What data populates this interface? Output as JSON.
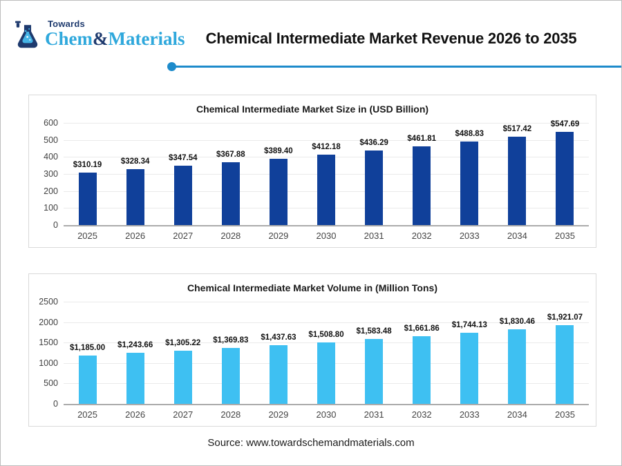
{
  "header": {
    "logo": {
      "towards": "Towards",
      "chem": "Chem",
      "ampersand": "&",
      "materials": "Materials"
    },
    "title": "Chemical Intermediate Market Revenue 2026 to 2035"
  },
  "colors": {
    "brand_dark_navy": "#1e3a6e",
    "brand_light_blue": "#2fa8dc",
    "accent_line": "#1d8bcb",
    "bar_dark_blue": "#10409a",
    "bar_sky_blue": "#3ec0f2"
  },
  "footer": {
    "source": "Source: www.towardschemandmaterials.com"
  },
  "chart_data": [
    {
      "type": "bar",
      "title": "Chemical Intermediate Market Size in (USD Billion)",
      "categories": [
        "2025",
        "2026",
        "2027",
        "2028",
        "2029",
        "2030",
        "2031",
        "2032",
        "2033",
        "2034",
        "2035"
      ],
      "values": [
        310.19,
        328.34,
        347.54,
        367.88,
        389.4,
        412.18,
        436.29,
        461.81,
        488.83,
        517.42,
        547.69
      ],
      "labels": [
        "$310.19",
        "$328.34",
        "$347.54",
        "$367.88",
        "$389.40",
        "$412.18",
        "$436.29",
        "$461.81",
        "$488.83",
        "$517.42",
        "$547.69"
      ],
      "xlabel": "",
      "ylabel": "",
      "ylim": [
        0,
        600
      ],
      "yticks": [
        0,
        100,
        200,
        300,
        400,
        500,
        600
      ],
      "grid": true,
      "legend": "none",
      "bar_color": "#10409a"
    },
    {
      "type": "bar",
      "title": "Chemical Intermediate Market Volume in (Million Tons)",
      "categories": [
        "2025",
        "2026",
        "2027",
        "2028",
        "2029",
        "2030",
        "2031",
        "2032",
        "2033",
        "2034",
        "2035"
      ],
      "values": [
        1185.0,
        1243.66,
        1305.22,
        1369.83,
        1437.63,
        1508.8,
        1583.48,
        1661.86,
        1744.13,
        1830.46,
        1921.07
      ],
      "labels": [
        "$1,185.00",
        "$1,243.66",
        "$1,305.22",
        "$1,369.83",
        "$1,437.63",
        "$1,508.80",
        "$1,583.48",
        "$1,661.86",
        "$1,744.13",
        "$1,830.46",
        "$1,921.07"
      ],
      "xlabel": "",
      "ylabel": "",
      "ylim": [
        0,
        2500
      ],
      "yticks": [
        0,
        500,
        1000,
        1500,
        2000,
        2500
      ],
      "grid": true,
      "legend": "none",
      "bar_color": "#3ec0f2"
    }
  ]
}
